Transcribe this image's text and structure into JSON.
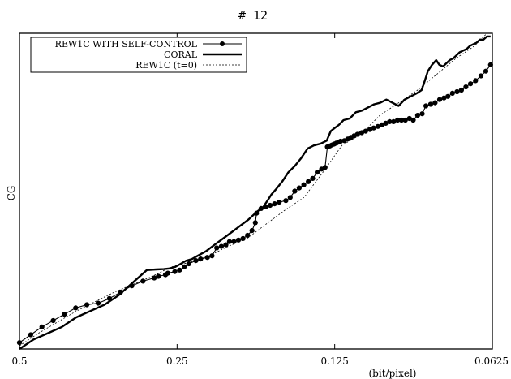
{
  "chart_data": {
    "type": "line",
    "title": "# 12",
    "xlabel": "(bit/pixel)",
    "ylabel": "CG",
    "x_scale": "log2-reversed",
    "xlim": [
      0.5,
      0.0625
    ],
    "x_ticks": [
      0.5,
      0.25,
      0.125,
      0.0625
    ],
    "x_tick_labels": [
      "0.5",
      "0.25",
      "0.125",
      "0.0625"
    ],
    "ylim": [
      0,
      100
    ],
    "y_tick_labels": [],
    "grid": false,
    "legend_position": "top-left",
    "series": [
      {
        "name": "REW1C WITH SELF-CONTROL",
        "style": "line-with-dots",
        "color": "#000000",
        "x": [
          0.5,
          0.4758,
          0.4529,
          0.4311,
          0.4103,
          0.3905,
          0.3717,
          0.3538,
          0.3367,
          0.3205,
          0.3051,
          0.2904,
          0.2764,
          0.2714,
          0.2631,
          0.2604,
          0.2525,
          0.2473,
          0.2423,
          0.2374,
          0.2302,
          0.2255,
          0.2188,
          0.2144,
          0.21,
          0.2058,
          0.2017,
          0.1986,
          0.1947,
          0.1909,
          0.1871,
          0.1834,
          0.1798,
          0.1772,
          0.1763,
          0.1728,
          0.1694,
          0.1661,
          0.1628,
          0.1596,
          0.155,
          0.152,
          0.149,
          0.1461,
          0.1432,
          0.1404,
          0.1377,
          0.135,
          0.1324,
          0.1304,
          0.1291,
          0.1278,
          0.1266,
          0.1254,
          0.1242,
          0.123,
          0.1218,
          0.1198,
          0.1181,
          0.1165,
          0.1148,
          0.1131,
          0.111,
          0.1091,
          0.1071,
          0.1053,
          0.1034,
          0.1016,
          0.0999,
          0.0982,
          0.0965,
          0.0948,
          0.0932,
          0.0916,
          0.09,
          0.0885,
          0.0868,
          0.0851,
          0.0837,
          0.082,
          0.0804,
          0.0788,
          0.0773,
          0.076,
          0.0745,
          0.073,
          0.0716,
          0.0702,
          0.0688,
          0.0673,
          0.0657,
          0.0643,
          0.063
        ],
        "y": [
          2,
          4.5,
          7,
          9,
          11,
          13,
          14,
          14.5,
          16,
          18,
          20,
          21.5,
          22.5,
          23,
          23.5,
          24,
          24.5,
          25,
          26,
          27,
          28,
          28.5,
          29,
          29.5,
          32,
          32.5,
          33,
          34,
          34,
          34.5,
          35,
          36,
          37.5,
          40,
          43,
          44.5,
          45,
          45.5,
          46,
          46.5,
          47,
          48,
          50,
          51,
          52,
          53,
          54,
          56,
          57,
          57.5,
          64,
          64.3,
          64.6,
          64.9,
          65.2,
          65.5,
          65.8,
          66,
          66.5,
          67,
          67.5,
          68,
          68.5,
          69,
          69.5,
          70,
          70.5,
          71,
          71.5,
          72,
          72,
          72.5,
          72.5,
          72.5,
          73,
          72.5,
          74,
          74.5,
          77,
          77.5,
          78,
          79,
          79.5,
          80,
          81,
          81.5,
          82,
          83,
          84,
          85,
          86.5,
          88,
          90
        ]
      },
      {
        "name": "CORAL",
        "style": "thick-line",
        "color": "#000000",
        "x": [
          0.5,
          0.4697,
          0.4414,
          0.4148,
          0.3898,
          0.3663,
          0.3441,
          0.3234,
          0.3039,
          0.2856,
          0.2741,
          0.2651,
          0.2586,
          0.2522,
          0.246,
          0.24,
          0.2341,
          0.2284,
          0.22,
          0.212,
          0.2042,
          0.1967,
          0.1895,
          0.1826,
          0.1759,
          0.1711,
          0.168,
          0.165,
          0.162,
          0.1575,
          0.1532,
          0.1489,
          0.1448,
          0.1408,
          0.1369,
          0.1331,
          0.1295,
          0.1272,
          0.125,
          0.1227,
          0.1202,
          0.117,
          0.1139,
          0.1109,
          0.108,
          0.1051,
          0.1023,
          0.0996,
          0.097,
          0.0944,
          0.0919,
          0.0895,
          0.0871,
          0.0853,
          0.0841,
          0.083,
          0.0815,
          0.08,
          0.0789,
          0.0776,
          0.0765,
          0.0754,
          0.0743,
          0.0732,
          0.0721,
          0.0711,
          0.07,
          0.069,
          0.068,
          0.067,
          0.066,
          0.065,
          0.064,
          0.063
        ],
        "y": [
          0,
          3,
          5,
          7,
          10,
          12,
          14,
          17,
          21,
          25,
          25.2,
          25.3,
          25.5,
          26,
          27,
          28,
          28.5,
          29.5,
          31,
          33,
          35,
          37,
          39,
          41,
          43.5,
          45,
          47,
          49,
          50.5,
          53,
          56,
          58,
          60.5,
          63.5,
          64.5,
          65,
          66,
          69,
          70,
          71,
          72.5,
          73,
          75,
          75.5,
          76.5,
          77.5,
          78,
          79,
          78,
          77,
          79,
          80,
          81,
          82,
          85,
          88,
          90,
          91.5,
          90,
          89.5,
          90.5,
          91.5,
          92,
          93,
          94,
          94.5,
          95,
          96,
          96.5,
          97,
          98,
          98,
          99,
          99
        ]
      },
      {
        "name": "REW1C  (t=0)",
        "style": "thin-dotted",
        "color": "#000000",
        "x": [
          0.5,
          0.46,
          0.4232,
          0.3893,
          0.3582,
          0.3295,
          0.3031,
          0.2789,
          0.2565,
          0.236,
          0.2171,
          0.1998,
          0.1838,
          0.1691,
          0.1555,
          0.1431,
          0.1316,
          0.1211,
          0.1114,
          0.1025,
          0.0943,
          0.0868,
          0.0798,
          0.0734,
          0.0676,
          0.064
        ],
        "y": [
          1,
          5,
          8.5,
          12,
          15,
          18,
          20.5,
          23,
          26,
          27.5,
          29.5,
          32.5,
          35,
          39.5,
          44,
          48,
          56,
          64.5,
          68,
          74,
          78,
          82,
          87,
          92,
          96,
          100
        ]
      }
    ]
  }
}
